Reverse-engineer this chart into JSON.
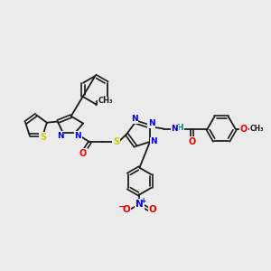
{
  "background_color": "#ebebeb",
  "bond_color": "#1a1a1a",
  "figsize": [
    3.0,
    3.0
  ],
  "dpi": 100,
  "atom_colors": {
    "S": "#cccc00",
    "N": "#0000ee",
    "O": "#ee0000",
    "H": "#008080",
    "C": "#1a1a1a"
  },
  "lw": 1.3,
  "dlw": 1.2,
  "doff": 0.055
}
